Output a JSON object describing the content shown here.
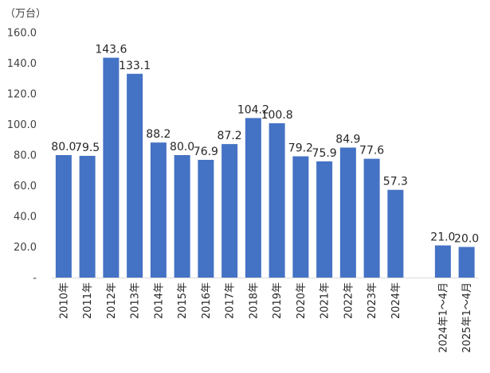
{
  "chart_data": {
    "type": "bar",
    "unit_label": "（万台）",
    "categories": [
      "2010年",
      "2011年",
      "2012年",
      "2013年",
      "2014年",
      "2015年",
      "2016年",
      "2017年",
      "2018年",
      "2019年",
      "2020年",
      "2021年",
      "2022年",
      "2023年",
      "2024年",
      "",
      "2024年1～4月",
      "2025年1～4月"
    ],
    "values": [
      80.0,
      79.5,
      143.6,
      133.1,
      88.2,
      80.0,
      76.9,
      87.2,
      104.2,
      100.8,
      79.2,
      75.9,
      84.9,
      77.6,
      57.3,
      null,
      21.0,
      20.0
    ],
    "value_labels": [
      "80.0",
      "79.5",
      "143.6",
      "133.1",
      "88.2",
      "80.0",
      "76.9",
      "87.2",
      "104.2",
      "100.8",
      "79.2",
      "75.9",
      "84.9",
      "77.6",
      "57.3",
      "",
      "21.0",
      "20.0"
    ],
    "yticks": [
      "-",
      "20.0",
      "40.0",
      "60.0",
      "80.0",
      "100.0",
      "120.0",
      "140.0",
      "160.0"
    ],
    "ylim": [
      0,
      160
    ],
    "bar_color": "#4472c4",
    "grid": false,
    "legend": "none",
    "title": ""
  }
}
